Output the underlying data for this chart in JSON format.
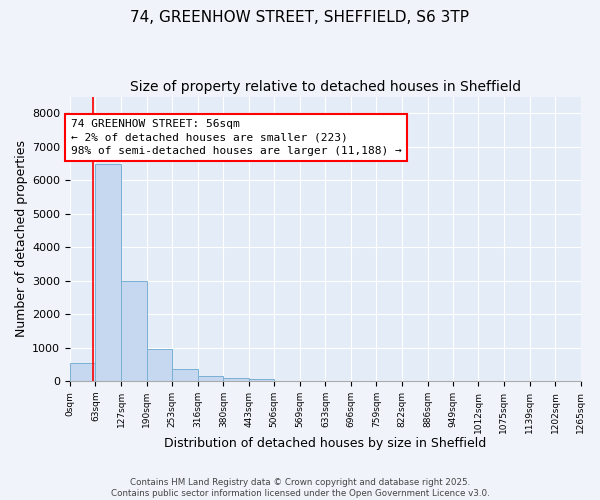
{
  "title_line1": "74, GREENHOW STREET, SHEFFIELD, S6 3TP",
  "title_line2": "Size of property relative to detached houses in Sheffield",
  "xlabel": "Distribution of detached houses by size in Sheffield",
  "ylabel": "Number of detached properties",
  "bar_edges": [
    0,
    63,
    127,
    190,
    253,
    316,
    380,
    443,
    506,
    569,
    633,
    696,
    759,
    822,
    886,
    949,
    1012,
    1075,
    1139,
    1202,
    1265
  ],
  "bar_values": [
    550,
    6480,
    2980,
    970,
    365,
    150,
    85,
    55,
    0,
    0,
    0,
    0,
    0,
    0,
    0,
    0,
    0,
    0,
    0,
    0
  ],
  "bar_color": "#c5d8f0",
  "bar_edge_color": "#7aafd4",
  "red_line_x": 56,
  "annotation_text_line1": "74 GREENHOW STREET: 56sqm",
  "annotation_text_line2": "← 2% of detached houses are smaller (223)",
  "annotation_text_line3": "98% of semi-detached houses are larger (11,188) →",
  "annotation_fontsize": 8,
  "annotation_box_color": "white",
  "annotation_box_edgecolor": "red",
  "ylim": [
    0,
    8500
  ],
  "xlim": [
    0,
    1265
  ],
  "yticks": [
    0,
    1000,
    2000,
    3000,
    4000,
    5000,
    6000,
    7000,
    8000
  ],
  "tick_labels": [
    "0sqm",
    "63sqm",
    "127sqm",
    "190sqm",
    "253sqm",
    "316sqm",
    "380sqm",
    "443sqm",
    "506sqm",
    "569sqm",
    "633sqm",
    "696sqm",
    "759sqm",
    "822sqm",
    "886sqm",
    "949sqm",
    "1012sqm",
    "1075sqm",
    "1139sqm",
    "1202sqm",
    "1265sqm"
  ],
  "tick_positions": [
    0,
    63,
    127,
    190,
    253,
    316,
    380,
    443,
    506,
    569,
    633,
    696,
    759,
    822,
    886,
    949,
    1012,
    1075,
    1139,
    1202,
    1265
  ],
  "footer_line1": "Contains HM Land Registry data © Crown copyright and database right 2025.",
  "footer_line2": "Contains public sector information licensed under the Open Government Licence v3.0.",
  "background_color": "#f0f4fa",
  "plot_bg_color": "#e4ecf7",
  "grid_color": "#ffffff",
  "title_fontsize": 11,
  "subtitle_fontsize": 10,
  "xlabel_fontsize": 9,
  "ylabel_fontsize": 9
}
